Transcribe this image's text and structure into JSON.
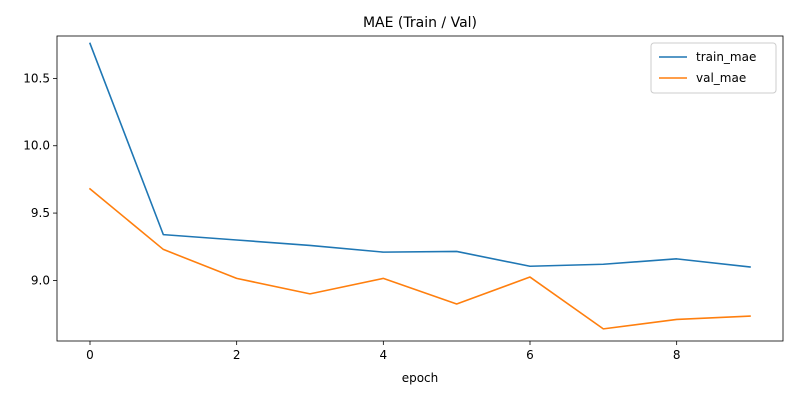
{
  "chart_data": {
    "type": "line",
    "title": "MAE (Train / Val)",
    "xlabel": "epoch",
    "ylabel": "",
    "xlim": [
      -0.45,
      9.45
    ],
    "ylim": [
      8.55,
      10.815
    ],
    "x_ticks": [
      0,
      2,
      4,
      6,
      8
    ],
    "x_tick_labels": [
      "0",
      "2",
      "4",
      "6",
      "8"
    ],
    "y_ticks": [
      9.0,
      9.5,
      10.0,
      10.5
    ],
    "y_tick_labels": [
      "9.0",
      "9.5",
      "10.0",
      "10.5"
    ],
    "x": [
      0,
      1,
      2,
      3,
      4,
      5,
      6,
      7,
      8,
      9
    ],
    "series": [
      {
        "name": "train_mae",
        "color": "#1f77b4",
        "values": [
          10.76,
          9.34,
          9.3,
          9.26,
          9.21,
          9.215,
          9.105,
          9.12,
          9.16,
          9.1
        ]
      },
      {
        "name": "val_mae",
        "color": "#ff7f0e",
        "values": [
          9.68,
          9.23,
          9.015,
          8.9,
          9.015,
          8.825,
          9.025,
          8.64,
          8.71,
          8.735
        ]
      }
    ],
    "legend_position": "top-right",
    "grid": false
  }
}
